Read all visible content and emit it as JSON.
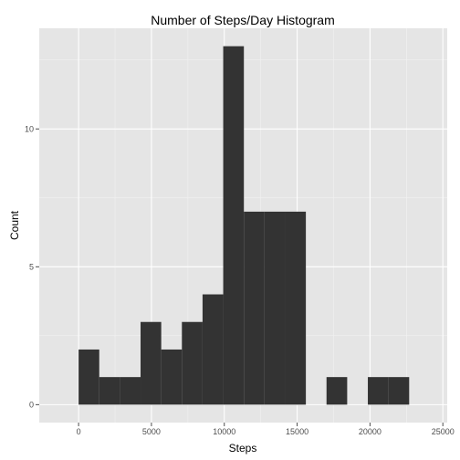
{
  "chart_data": {
    "type": "bar",
    "title": "Number of Steps/Day Histogram",
    "xlabel": "Steps",
    "ylabel": "Count",
    "xlim": [
      -2700,
      25300
    ],
    "ylim": [
      -0.65,
      13.65
    ],
    "x_ticks": [
      0,
      5000,
      10000,
      15000,
      20000,
      25000
    ],
    "x_tick_labels": [
      "0",
      "5000",
      "10000",
      "15000",
      "20000",
      "25000"
    ],
    "y_ticks": [
      0,
      5,
      10
    ],
    "y_tick_labels": [
      "0",
      "5",
      "10"
    ],
    "grid": true,
    "bin_width": 1418,
    "bins": [
      {
        "x0": 0,
        "x1": 1418,
        "count": 2
      },
      {
        "x0": 1418,
        "x1": 2836,
        "count": 1
      },
      {
        "x0": 2836,
        "x1": 4254,
        "count": 1
      },
      {
        "x0": 4254,
        "x1": 5672,
        "count": 3
      },
      {
        "x0": 5672,
        "x1": 7090,
        "count": 2
      },
      {
        "x0": 7090,
        "x1": 8508,
        "count": 3
      },
      {
        "x0": 8508,
        "x1": 9926,
        "count": 4
      },
      {
        "x0": 9926,
        "x1": 11344,
        "count": 13
      },
      {
        "x0": 11344,
        "x1": 12762,
        "count": 7
      },
      {
        "x0": 12762,
        "x1": 14180,
        "count": 7
      },
      {
        "x0": 14180,
        "x1": 15598,
        "count": 7
      },
      {
        "x0": 15598,
        "x1": 17016,
        "count": 0
      },
      {
        "x0": 17016,
        "x1": 18434,
        "count": 1
      },
      {
        "x0": 18434,
        "x1": 19852,
        "count": 0
      },
      {
        "x0": 19852,
        "x1": 21270,
        "count": 1
      },
      {
        "x0": 21270,
        "x1": 22688,
        "count": 1
      }
    ],
    "colors": {
      "bar": "#333333",
      "panel": "#e5e5e5",
      "grid_major": "#ffffff",
      "grid_minor": "#f2f2f2"
    }
  }
}
